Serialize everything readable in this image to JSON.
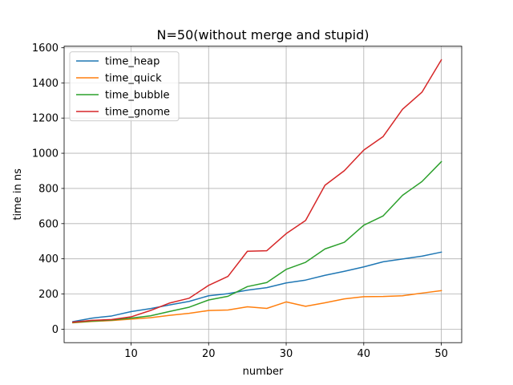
{
  "chart_data": {
    "type": "line",
    "title": "N=50(without merge and stupid)",
    "xlabel": "number",
    "ylabel": "time in ns",
    "xlim": [
      1.375,
      52.625
    ],
    "ylim": [
      -76.6,
      1608.5
    ],
    "xticks": [
      10,
      20,
      30,
      40,
      50
    ],
    "xtick_labels": [
      "10",
      "20",
      "30",
      "40",
      "50"
    ],
    "yticks": [
      0,
      200,
      400,
      600,
      800,
      1000,
      1200,
      1400,
      1600
    ],
    "ytick_labels": [
      "0",
      "200",
      "400",
      "600",
      "800",
      "1000",
      "1200",
      "1400",
      "1600"
    ],
    "grid": true,
    "legend": "top-left",
    "x": [
      2.5,
      5,
      7.5,
      10,
      12.5,
      15,
      17.5,
      20,
      22.5,
      25,
      27.5,
      30,
      32.5,
      35,
      37.5,
      40,
      42.5,
      45,
      47.5,
      50
    ],
    "series": [
      {
        "name": "time_heap",
        "color": "#1f77b4",
        "values": [
          43,
          63,
          75,
          100,
          117,
          138,
          158,
          190,
          202,
          222,
          236,
          263,
          279,
          306,
          329,
          354,
          383,
          399,
          415,
          438
        ]
      },
      {
        "name": "time_quick",
        "color": "#ff7f0e",
        "values": [
          36,
          44,
          49,
          57,
          65,
          79,
          90,
          106,
          109,
          127,
          118,
          155,
          130,
          150,
          172,
          185,
          186,
          190,
          205,
          219
        ]
      },
      {
        "name": "time_bubble",
        "color": "#2ca02c",
        "values": [
          38,
          46,
          52,
          63,
          76,
          101,
          125,
          166,
          187,
          242,
          265,
          340,
          380,
          456,
          494,
          591,
          644,
          761,
          839,
          952
        ]
      },
      {
        "name": "time_gnome",
        "color": "#d62728",
        "values": [
          40,
          50,
          55,
          70,
          106,
          149,
          176,
          249,
          300,
          443,
          446,
          543,
          618,
          818,
          901,
          1018,
          1095,
          1250,
          1347,
          1531
        ]
      }
    ]
  }
}
